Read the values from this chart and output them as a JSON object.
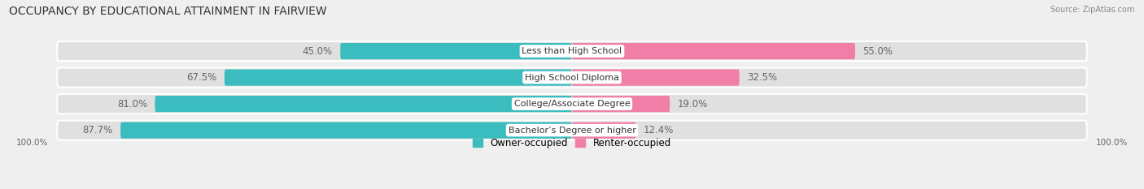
{
  "title": "OCCUPANCY BY EDUCATIONAL ATTAINMENT IN FAIRVIEW",
  "source": "Source: ZipAtlas.com",
  "categories": [
    "Less than High School",
    "High School Diploma",
    "College/Associate Degree",
    "Bachelor’s Degree or higher"
  ],
  "owner_values": [
    45.0,
    67.5,
    81.0,
    87.7
  ],
  "renter_values": [
    55.0,
    32.5,
    19.0,
    12.4
  ],
  "owner_color": "#3BBCBE",
  "renter_color": "#F07EA6",
  "background_color": "#EFEFEF",
  "bar_bg_color": "#E0E0E0",
  "title_fontsize": 10,
  "label_fontsize": 8.5,
  "bar_height": 0.62,
  "legend_owner": "Owner-occupied",
  "legend_renter": "Renter-occupied",
  "axis_label": "100.0%"
}
